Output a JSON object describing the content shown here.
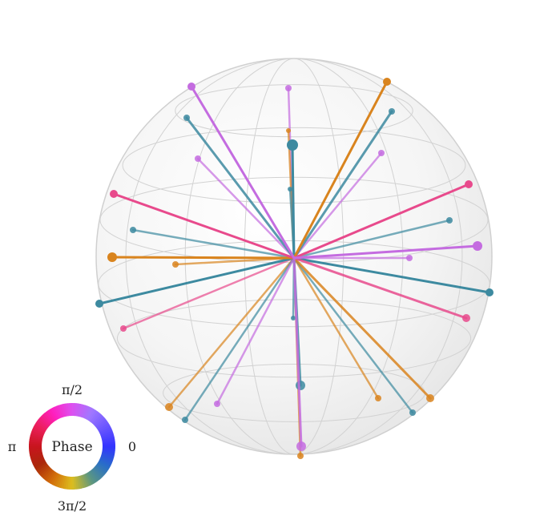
{
  "legend": {
    "center_label": "Phase",
    "top_label": "π/2",
    "left_label": "π",
    "right_label": "0",
    "bottom_label": "3π/2"
  },
  "colors": {
    "blue": "#3d8aa0",
    "orange": "#d9841e",
    "pink": "#e84a8c",
    "violet": "#c46ce0",
    "sphere_grid": "#d2d2d2",
    "sphere_fill": "#eeeeee"
  },
  "icons": [
    "phase-color-wheel-icon",
    "bloch-sphere-icon"
  ],
  "vectors": [
    {
      "name": "blue-vector-1",
      "color": "blue",
      "endpoint": "front"
    },
    {
      "name": "blue-vector-2",
      "color": "blue",
      "endpoint": "front"
    },
    {
      "name": "blue-vector-3",
      "color": "blue",
      "endpoint": "front"
    },
    {
      "name": "blue-vector-4",
      "color": "blue",
      "endpoint": "back"
    },
    {
      "name": "blue-vector-5",
      "color": "blue",
      "endpoint": "back"
    },
    {
      "name": "blue-vector-6",
      "color": "blue",
      "endpoint": "back"
    },
    {
      "name": "orange-vector-1",
      "color": "orange",
      "endpoint": "front"
    },
    {
      "name": "orange-vector-2",
      "color": "orange",
      "endpoint": "front"
    },
    {
      "name": "orange-vector-3",
      "color": "orange",
      "endpoint": "back"
    },
    {
      "name": "pink-vector-1",
      "color": "pink",
      "endpoint": "front"
    },
    {
      "name": "pink-vector-2",
      "color": "pink",
      "endpoint": "front"
    },
    {
      "name": "pink-vector-3",
      "color": "pink",
      "endpoint": "back"
    },
    {
      "name": "violet-vector-1",
      "color": "violet",
      "endpoint": "front"
    },
    {
      "name": "violet-vector-2",
      "color": "violet",
      "endpoint": "front"
    },
    {
      "name": "violet-vector-3",
      "color": "violet",
      "endpoint": "back"
    }
  ]
}
